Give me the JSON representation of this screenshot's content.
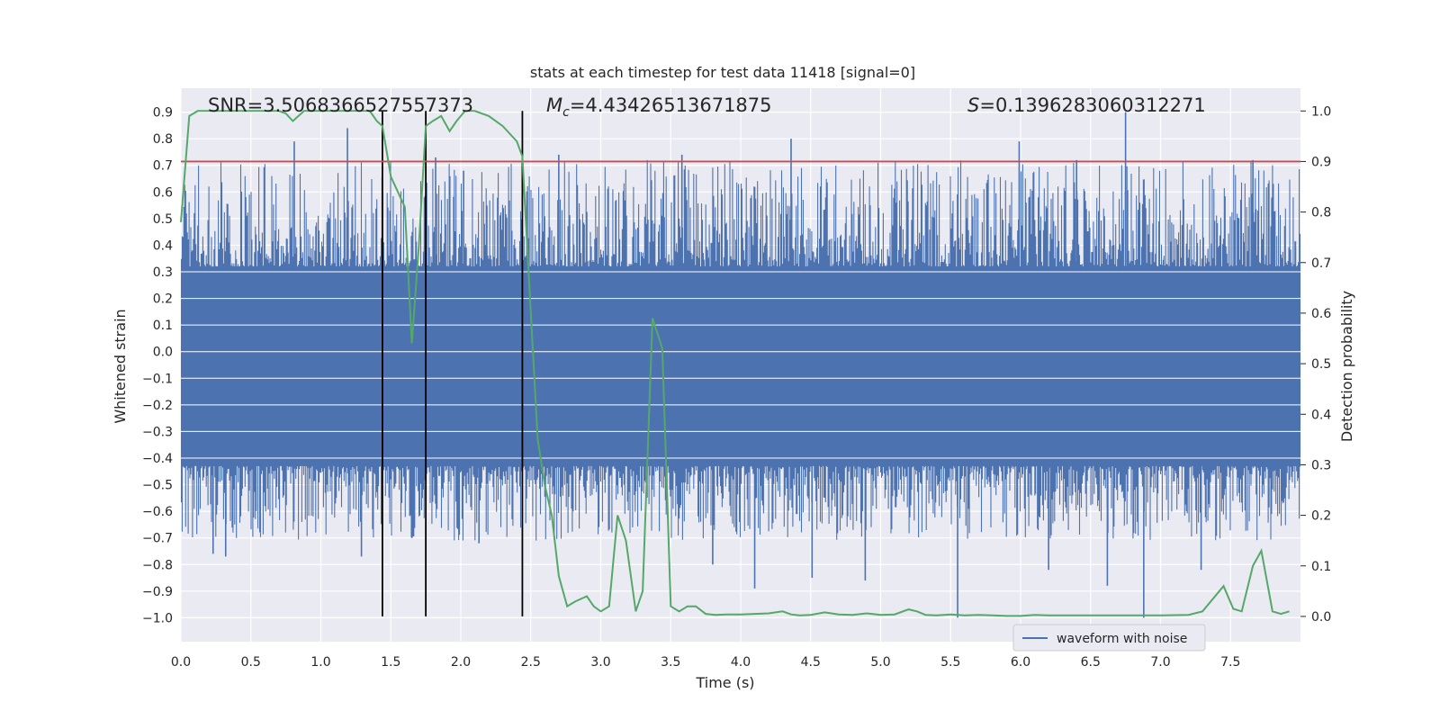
{
  "chart_data": {
    "type": "line",
    "title": "stats at each timestep for test data 11418 [signal=0]",
    "xlabel": "Time (s)",
    "ylabel_left": "Whitened strain",
    "ylabel_right": "Detection probability",
    "xlim": [
      0.0,
      8.0
    ],
    "ylim_left": [
      -1.09,
      0.99
    ],
    "ylim_right": [
      -0.05,
      1.045
    ],
    "x_ticks": [
      0.0,
      0.5,
      1.0,
      1.5,
      2.0,
      2.5,
      3.0,
      3.5,
      4.0,
      4.5,
      5.0,
      5.5,
      6.0,
      6.5,
      7.0,
      7.5
    ],
    "x_tick_labels": [
      "0.0",
      "0.5",
      "1.0",
      "1.5",
      "2.0",
      "2.5",
      "3.0",
      "3.5",
      "4.0",
      "4.5",
      "5.0",
      "5.5",
      "6.0",
      "6.5",
      "7.0",
      "7.5"
    ],
    "y_left_ticks": [
      0.9,
      0.8,
      0.7,
      0.6,
      0.5,
      0.4,
      0.3,
      0.2,
      0.1,
      0.0,
      -0.1,
      -0.2,
      -0.3,
      -0.4,
      -0.5,
      -0.6,
      -0.7,
      -0.8,
      -0.9,
      -1.0
    ],
    "y_left_tick_labels": [
      "0.9",
      "0.8",
      "0.7",
      "0.6",
      "0.5",
      "0.4",
      "0.3",
      "0.2",
      "0.1",
      "0.0",
      "−0.1",
      "−0.2",
      "−0.3",
      "−0.4",
      "−0.5",
      "−0.6",
      "−0.7",
      "−0.8",
      "−0.9",
      "−1.0"
    ],
    "y_right_ticks": [
      1.0,
      0.9,
      0.8,
      0.7,
      0.6,
      0.5,
      0.4,
      0.3,
      0.2,
      0.1,
      0.0
    ],
    "y_right_tick_labels": [
      "1.0",
      "0.9",
      "0.8",
      "0.7",
      "0.6",
      "0.5",
      "0.4",
      "0.3",
      "0.2",
      "0.1",
      "0.0"
    ],
    "annotations": {
      "snr": "SNR=3.5068366527557373",
      "mc_symbol": "M",
      "mc_subscript": "c",
      "mc_value": "=4.43426513671875",
      "s_symbol": "S",
      "s_value": "=0.1396283060312271"
    },
    "threshold": {
      "value": 0.9,
      "axis": "right",
      "color": "#c44e52"
    },
    "vertical_markers": [
      1.44,
      1.75,
      2.44
    ],
    "waveform": {
      "name": "waveform with noise",
      "color": "#4c72b0",
      "core_band": [
        -0.55,
        0.42
      ],
      "spikes": [
        {
          "t": 0.32,
          "v": -0.77
        },
        {
          "t": 0.23,
          "v": -0.76
        },
        {
          "t": 0.81,
          "v": 0.79
        },
        {
          "t": 1.19,
          "v": 0.84
        },
        {
          "t": 1.29,
          "v": -0.77
        },
        {
          "t": 1.82,
          "v": 0.73
        },
        {
          "t": 2.02,
          "v": 0.68
        },
        {
          "t": 2.7,
          "v": 0.74
        },
        {
          "t": 3.58,
          "v": 0.74
        },
        {
          "t": 3.8,
          "v": -0.8
        },
        {
          "t": 4.1,
          "v": -0.89
        },
        {
          "t": 4.36,
          "v": 0.8
        },
        {
          "t": 4.51,
          "v": -0.85
        },
        {
          "t": 4.89,
          "v": -0.86
        },
        {
          "t": 5.55,
          "v": -1.0
        },
        {
          "t": 5.99,
          "v": 0.79
        },
        {
          "t": 6.2,
          "v": -0.82
        },
        {
          "t": 6.62,
          "v": -0.88
        },
        {
          "t": 6.75,
          "v": 0.9
        },
        {
          "t": 6.88,
          "v": -1.0
        },
        {
          "t": 7.29,
          "v": -0.82
        },
        {
          "t": 6.4,
          "v": 0.72
        },
        {
          "t": 7.66,
          "v": 0.72
        },
        {
          "t": 2.13,
          "v": -0.72
        }
      ]
    },
    "detection_probability": {
      "color": "#55a868",
      "t": [
        0.0,
        0.06,
        0.12,
        0.2,
        0.3,
        0.4,
        0.5,
        0.6,
        0.7,
        0.75,
        0.8,
        0.88,
        0.96,
        1.05,
        1.2,
        1.35,
        1.4,
        1.44,
        1.5,
        1.55,
        1.6,
        1.65,
        1.7,
        1.75,
        1.8,
        1.86,
        1.92,
        1.97,
        2.03,
        2.1,
        2.2,
        2.3,
        2.4,
        2.44,
        2.5,
        2.55,
        2.6,
        2.65,
        2.7,
        2.76,
        2.82,
        2.9,
        2.95,
        3.0,
        3.06,
        3.12,
        3.18,
        3.25,
        3.3,
        3.37,
        3.44,
        3.5,
        3.56,
        3.62,
        3.68,
        3.75,
        3.82,
        3.9,
        4.0,
        4.1,
        4.2,
        4.3,
        4.36,
        4.42,
        4.5,
        4.6,
        4.7,
        4.8,
        4.9,
        5.0,
        5.1,
        5.2,
        5.26,
        5.32,
        5.4,
        5.5,
        5.6,
        5.7,
        5.8,
        5.9,
        6.0,
        6.1,
        6.2,
        6.4,
        6.6,
        6.8,
        7.0,
        7.2,
        7.3,
        7.45,
        7.52,
        7.58,
        7.66,
        7.72,
        7.8,
        7.86,
        7.92
      ],
      "p": [
        0.78,
        0.99,
        1.0,
        1.0,
        1.0,
        1.0,
        1.0,
        1.0,
        1.0,
        0.995,
        0.98,
        1.0,
        1.0,
        1.0,
        1.0,
        1.0,
        0.98,
        0.97,
        0.87,
        0.84,
        0.81,
        0.54,
        0.73,
        0.97,
        0.98,
        0.99,
        0.96,
        0.98,
        1.0,
        1.0,
        0.99,
        0.97,
        0.94,
        0.91,
        0.6,
        0.35,
        0.26,
        0.2,
        0.08,
        0.02,
        0.03,
        0.04,
        0.02,
        0.01,
        0.02,
        0.2,
        0.15,
        0.01,
        0.05,
        0.59,
        0.53,
        0.02,
        0.01,
        0.02,
        0.02,
        0.005,
        0.003,
        0.004,
        0.004,
        0.005,
        0.006,
        0.01,
        0.004,
        0.002,
        0.003,
        0.008,
        0.004,
        0.003,
        0.006,
        0.003,
        0.004,
        0.014,
        0.01,
        0.003,
        0.002,
        0.004,
        0.002,
        0.003,
        0.002,
        0.001,
        0.001,
        0.003,
        0.002,
        0.002,
        0.002,
        0.002,
        0.002,
        0.003,
        0.01,
        0.06,
        0.015,
        0.01,
        0.1,
        0.13,
        0.01,
        0.005,
        0.01
      ]
    },
    "legend": {
      "placement": "lower-right",
      "label": "waveform with noise"
    },
    "grid": true,
    "background": "#eaeaf2"
  }
}
